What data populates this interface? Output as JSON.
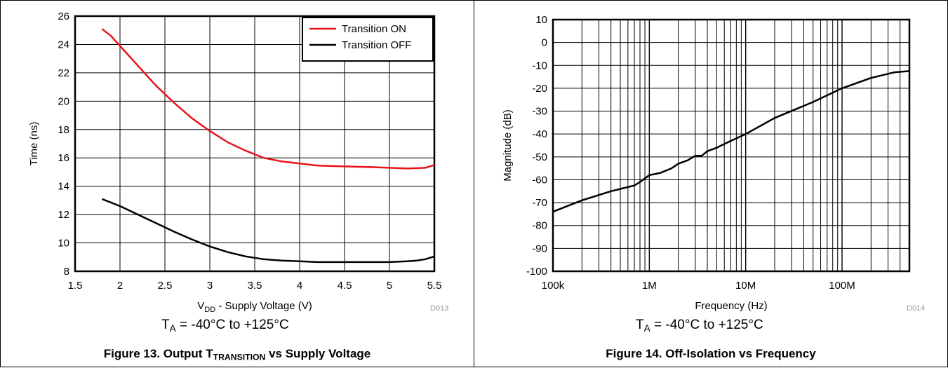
{
  "colors": {
    "on": "#e8131b",
    "off": "#000000",
    "grid": "#000000"
  },
  "figure13": {
    "code": "D013",
    "condition_sym": "T",
    "condition_sub": "A",
    "condition_rest": " = -40°C to +125°C",
    "caption_pre": "Figure 13. Output T",
    "caption_sub": "TRANSITION",
    "caption_post": " vs Supply Voltage"
  },
  "figure14": {
    "code": "D014",
    "condition_sym": "T",
    "condition_sub": "A",
    "condition_rest": " = -40°C to +125°C",
    "caption": "Figure 14. Off-Isolation vs Frequency"
  },
  "chart_data": [
    {
      "type": "line",
      "xlabel_pre": "V",
      "xlabel_sub": "DD",
      "xlabel_post": " - Supply Voltage (V)",
      "ylabel": "Time (ns)",
      "xlim": [
        1.5,
        5.5
      ],
      "ylim": [
        8,
        26
      ],
      "xticks": [
        1.5,
        2,
        2.5,
        3,
        3.5,
        4,
        4.5,
        5,
        5.5
      ],
      "xtick_labels": [
        "1.5",
        "2",
        "2.5",
        "3",
        "3.5",
        "4",
        "4.5",
        "5",
        "5.5"
      ],
      "yticks": [
        8,
        10,
        12,
        14,
        16,
        18,
        20,
        22,
        24,
        26
      ],
      "ytick_labels": [
        "8",
        "10",
        "12",
        "14",
        "16",
        "18",
        "20",
        "22",
        "24",
        "26"
      ],
      "grid": true,
      "legend_position": "top-right",
      "series": [
        {
          "name": "Transition ON",
          "color": "#e8131b",
          "x": [
            1.8,
            1.9,
            2.0,
            2.2,
            2.4,
            2.6,
            2.8,
            3.0,
            3.2,
            3.4,
            3.6,
            3.8,
            4.0,
            4.2,
            4.5,
            4.8,
            5.0,
            5.2,
            5.4,
            5.5
          ],
          "y": [
            25.1,
            24.6,
            23.9,
            22.5,
            21.1,
            19.9,
            18.8,
            17.9,
            17.1,
            16.5,
            16.0,
            15.75,
            15.6,
            15.45,
            15.4,
            15.35,
            15.3,
            15.25,
            15.3,
            15.5
          ]
        },
        {
          "name": "Transition OFF",
          "color": "#000000",
          "x": [
            1.8,
            2.0,
            2.2,
            2.4,
            2.6,
            2.8,
            3.0,
            3.2,
            3.4,
            3.6,
            3.8,
            4.0,
            4.2,
            4.5,
            4.8,
            5.0,
            5.2,
            5.3,
            5.4,
            5.5
          ],
          "y": [
            13.1,
            12.6,
            12.0,
            11.4,
            10.8,
            10.25,
            9.75,
            9.35,
            9.05,
            8.85,
            8.75,
            8.7,
            8.65,
            8.65,
            8.65,
            8.65,
            8.7,
            8.75,
            8.85,
            9.05
          ]
        }
      ]
    },
    {
      "type": "line",
      "xlabel": "Frequency (Hz)",
      "ylabel": "Magnitude (dB)",
      "xscale": "log",
      "xlim": [
        100000,
        500000000
      ],
      "ylim": [
        -100,
        10
      ],
      "xticks": [
        100000,
        1000000,
        10000000,
        100000000
      ],
      "xtick_labels": [
        "100k",
        "1M",
        "10M",
        "100M"
      ],
      "yticks": [
        -100,
        -90,
        -80,
        -70,
        -60,
        -50,
        -40,
        -30,
        -20,
        -10,
        0,
        10
      ],
      "ytick_labels": [
        "-100",
        "-90",
        "-80",
        "-70",
        "-60",
        "-50",
        "-40",
        "-30",
        "-20",
        "-10",
        "0",
        "10"
      ],
      "grid": true,
      "series": [
        {
          "color": "#000000",
          "x": [
            100000,
            200000,
            400000,
            700000,
            800000,
            1000000,
            1300000,
            1700000,
            2000000,
            2500000,
            3000000,
            3500000,
            4000000,
            5000000,
            7000000,
            10000000,
            20000000,
            50000000,
            100000000,
            200000000,
            350000000,
            500000000
          ],
          "y": [
            -74,
            -69,
            -65,
            -62.5,
            -61,
            -58,
            -57,
            -55,
            -53,
            -51.5,
            -49.5,
            -49.5,
            -47.5,
            -46,
            -43,
            -40,
            -33,
            -26,
            -20,
            -15.5,
            -13,
            -12.5
          ]
        }
      ]
    }
  ]
}
